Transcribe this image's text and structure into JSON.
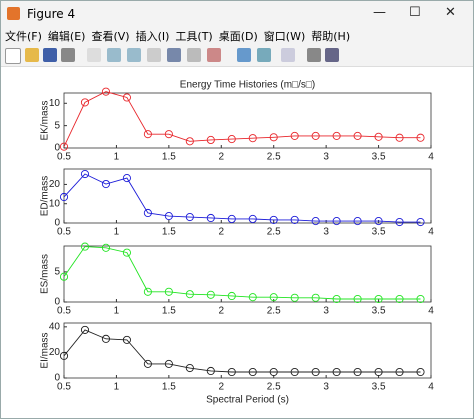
{
  "window": {
    "title": "Figure 4",
    "menu": [
      "文件(F)",
      "编辑(E)",
      "查看(V)",
      "插入(I)",
      "工具(T)",
      "桌面(D)",
      "窗口(W)",
      "帮助(H)"
    ]
  },
  "chart_data": [
    {
      "type": "line",
      "title": "Energy Time Histories (m□/s□)",
      "ylabel": "EK/mass",
      "color": "#e8262b",
      "x": [
        0.5,
        0.7,
        0.9,
        1.1,
        1.3,
        1.5,
        1.7,
        1.9,
        2.1,
        2.3,
        2.5,
        2.7,
        2.9,
        3.1,
        3.3,
        3.5,
        3.7,
        3.9
      ],
      "values": [
        0.3,
        10.2,
        12.6,
        11.3,
        3.1,
        3.1,
        1.5,
        1.8,
        2.0,
        2.2,
        2.4,
        2.7,
        2.7,
        2.7,
        2.7,
        2.5,
        2.3,
        2.3
      ],
      "xlim": [
        0.5,
        4
      ],
      "xticks": [
        0.5,
        1,
        1.5,
        2,
        2.5,
        3,
        3.5,
        4
      ],
      "ylim": [
        0,
        12.3
      ],
      "yticks": [
        0,
        5,
        10
      ]
    },
    {
      "type": "line",
      "ylabel": "ED/mass",
      "color": "#1c1cd8",
      "x": [
        0.5,
        0.7,
        0.9,
        1.1,
        1.3,
        1.5,
        1.7,
        1.9,
        2.1,
        2.3,
        2.5,
        2.7,
        2.9,
        3.1,
        3.3,
        3.5,
        3.7,
        3.9
      ],
      "values": [
        13.5,
        25.4,
        20.2,
        23.3,
        5.2,
        3.6,
        3.1,
        2.6,
        2.1,
        2.1,
        1.6,
        1.6,
        1.0,
        1.0,
        1.0,
        1.0,
        0.5,
        0.5
      ],
      "xlim": [
        0.5,
        4
      ],
      "xticks": [
        0.5,
        1,
        1.5,
        2,
        2.5,
        3,
        3.5,
        4
      ],
      "ylim": [
        0,
        28
      ],
      "yticks": [
        0,
        10,
        20
      ]
    },
    {
      "type": "line",
      "ylabel": "ES/mass",
      "color": "#22e422",
      "x": [
        0.5,
        0.7,
        0.9,
        1.1,
        1.3,
        1.5,
        1.7,
        1.9,
        2.1,
        2.3,
        2.5,
        2.7,
        2.9,
        3.1,
        3.3,
        3.5,
        3.7,
        3.9
      ],
      "values": [
        4.2,
        9.2,
        9.0,
        8.2,
        1.7,
        1.7,
        1.3,
        1.2,
        1.0,
        0.8,
        0.8,
        0.7,
        0.7,
        0.5,
        0.5,
        0.5,
        0.5,
        0.5
      ],
      "xlim": [
        0.5,
        4
      ],
      "xticks": [
        0.5,
        1,
        1.5,
        2,
        2.5,
        3,
        3.5,
        4
      ],
      "ylim": [
        0,
        9.3
      ],
      "yticks": [
        0,
        5
      ]
    },
    {
      "type": "line",
      "ylabel": "EI/mass",
      "xlabel": "Spectral Period (s)",
      "color": "#222222",
      "x": [
        0.5,
        0.7,
        0.9,
        1.1,
        1.3,
        1.5,
        1.7,
        1.9,
        2.1,
        2.3,
        2.5,
        2.7,
        2.9,
        3.1,
        3.3,
        3.5,
        3.7,
        3.9
      ],
      "values": [
        17.3,
        37.6,
        30.6,
        29.8,
        11,
        11,
        7.8,
        5.5,
        4.7,
        4.7,
        4.7,
        4.7,
        4.7,
        4.7,
        4.7,
        4.7,
        4.7,
        4.7
      ],
      "xlim": [
        0.5,
        4
      ],
      "xticks": [
        0.5,
        1,
        1.5,
        2,
        2.5,
        3,
        3.5,
        4
      ],
      "ylim": [
        0,
        43
      ],
      "yticks": [
        0,
        20,
        40
      ]
    }
  ]
}
